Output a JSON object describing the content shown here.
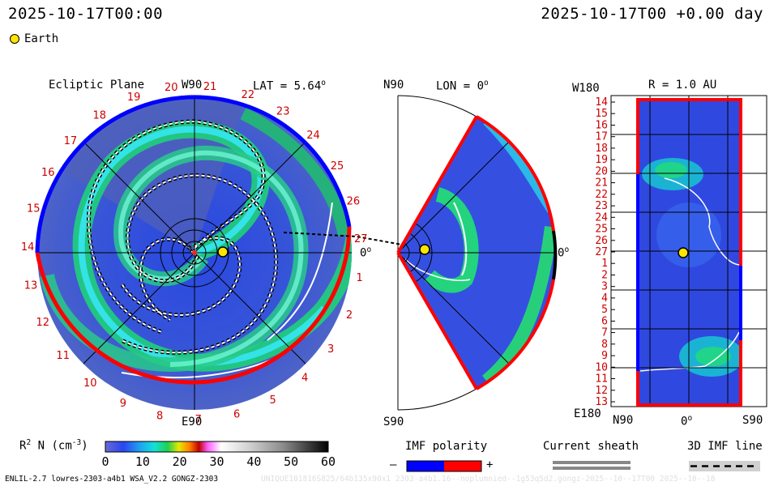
{
  "header": {
    "left_time": "2025-10-17T00:00",
    "right_time": "2025-10-17T00 +0.00 day"
  },
  "legend": {
    "earth_label": "Earth"
  },
  "ecliptic": {
    "title": "Ecliptic Plane",
    "top_axis": "W90",
    "lat_label": "LAT = 5.64",
    "lat_deg": "o",
    "bottom_axis": "E90",
    "right_zero": "0",
    "right_deg": "o",
    "ticks": [
      "20",
      "21",
      "22",
      "23",
      "24",
      "25",
      "26",
      "27",
      "1",
      "2",
      "3",
      "4",
      "5",
      "6",
      "7",
      "8",
      "9",
      "10",
      "11",
      "12",
      "13",
      "14",
      "15",
      "16",
      "17",
      "18",
      "19"
    ]
  },
  "meridional": {
    "top_axis": "N90",
    "lon_label": "LON = 0",
    "lon_deg": "o",
    "bottom_axis": "S90",
    "right_zero": "0",
    "right_deg": "o"
  },
  "r_panel": {
    "title": "R = 1.0 AU",
    "top_left": "W180",
    "bottom_left": "E180",
    "x_left": "N90",
    "x_mid": "0",
    "x_mid_deg": "o",
    "x_right": "S90",
    "yticks": [
      "14",
      "15",
      "16",
      "17",
      "18",
      "19",
      "20",
      "21",
      "22",
      "23",
      "24",
      "25",
      "26",
      "27",
      "1",
      "2",
      "3",
      "4",
      "5",
      "6",
      "7",
      "8",
      "9",
      "10",
      "11",
      "12",
      "13"
    ]
  },
  "colorbar": {
    "label": "R",
    "label_sup": "2",
    "label_rest": " N (cm",
    "label_exp": "-3",
    "label_close": ")",
    "ticks": [
      "0",
      "10",
      "20",
      "30",
      "40",
      "50",
      "60"
    ]
  },
  "imf": {
    "title": "IMF polarity",
    "minus": "–",
    "plus": "+"
  },
  "sheath": {
    "title": "Current sheath"
  },
  "imf3d": {
    "title": "3D IMF line"
  },
  "footer": {
    "left": "ENLIL-2.7 lowres-2303-a4b1 WSA_V2.2 GONGZ-2303",
    "watermark": "UNIQUE101816S825/64b135x90x1 2303-a4b1.16--noplumnied--1g53q5d2.gongz-2025--10--17T00 2025--10--18"
  },
  "colors": {
    "polarity_neg": "#0000ff",
    "polarity_pos": "#ff0000",
    "background_field": "#3a4fd0",
    "stream": "#16c87a"
  }
}
